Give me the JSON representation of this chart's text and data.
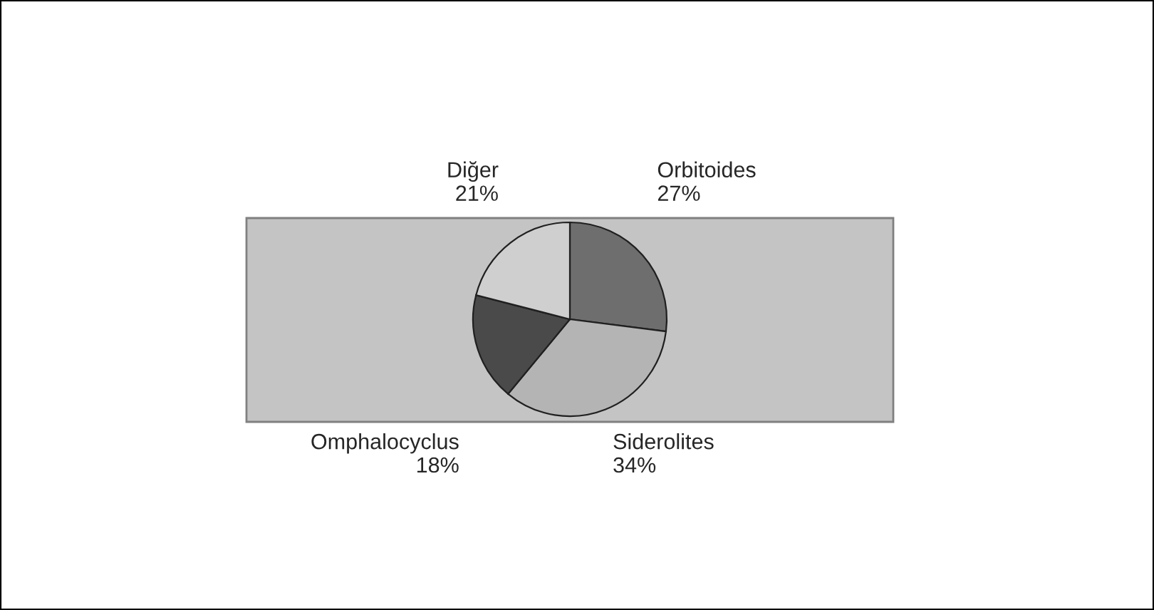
{
  "chart_data": {
    "type": "pie",
    "categories": [
      "Orbitoides",
      "Siderolites",
      "Omphalocyclus",
      "Diğer"
    ],
    "values": [
      27,
      34,
      18,
      21
    ],
    "value_labels": [
      "27%",
      "34%",
      "18%",
      "21%"
    ],
    "colors": [
      "#6e6e6e",
      "#b4b4b4",
      "#4a4a4a",
      "#cfcfcf"
    ],
    "legend": false
  }
}
